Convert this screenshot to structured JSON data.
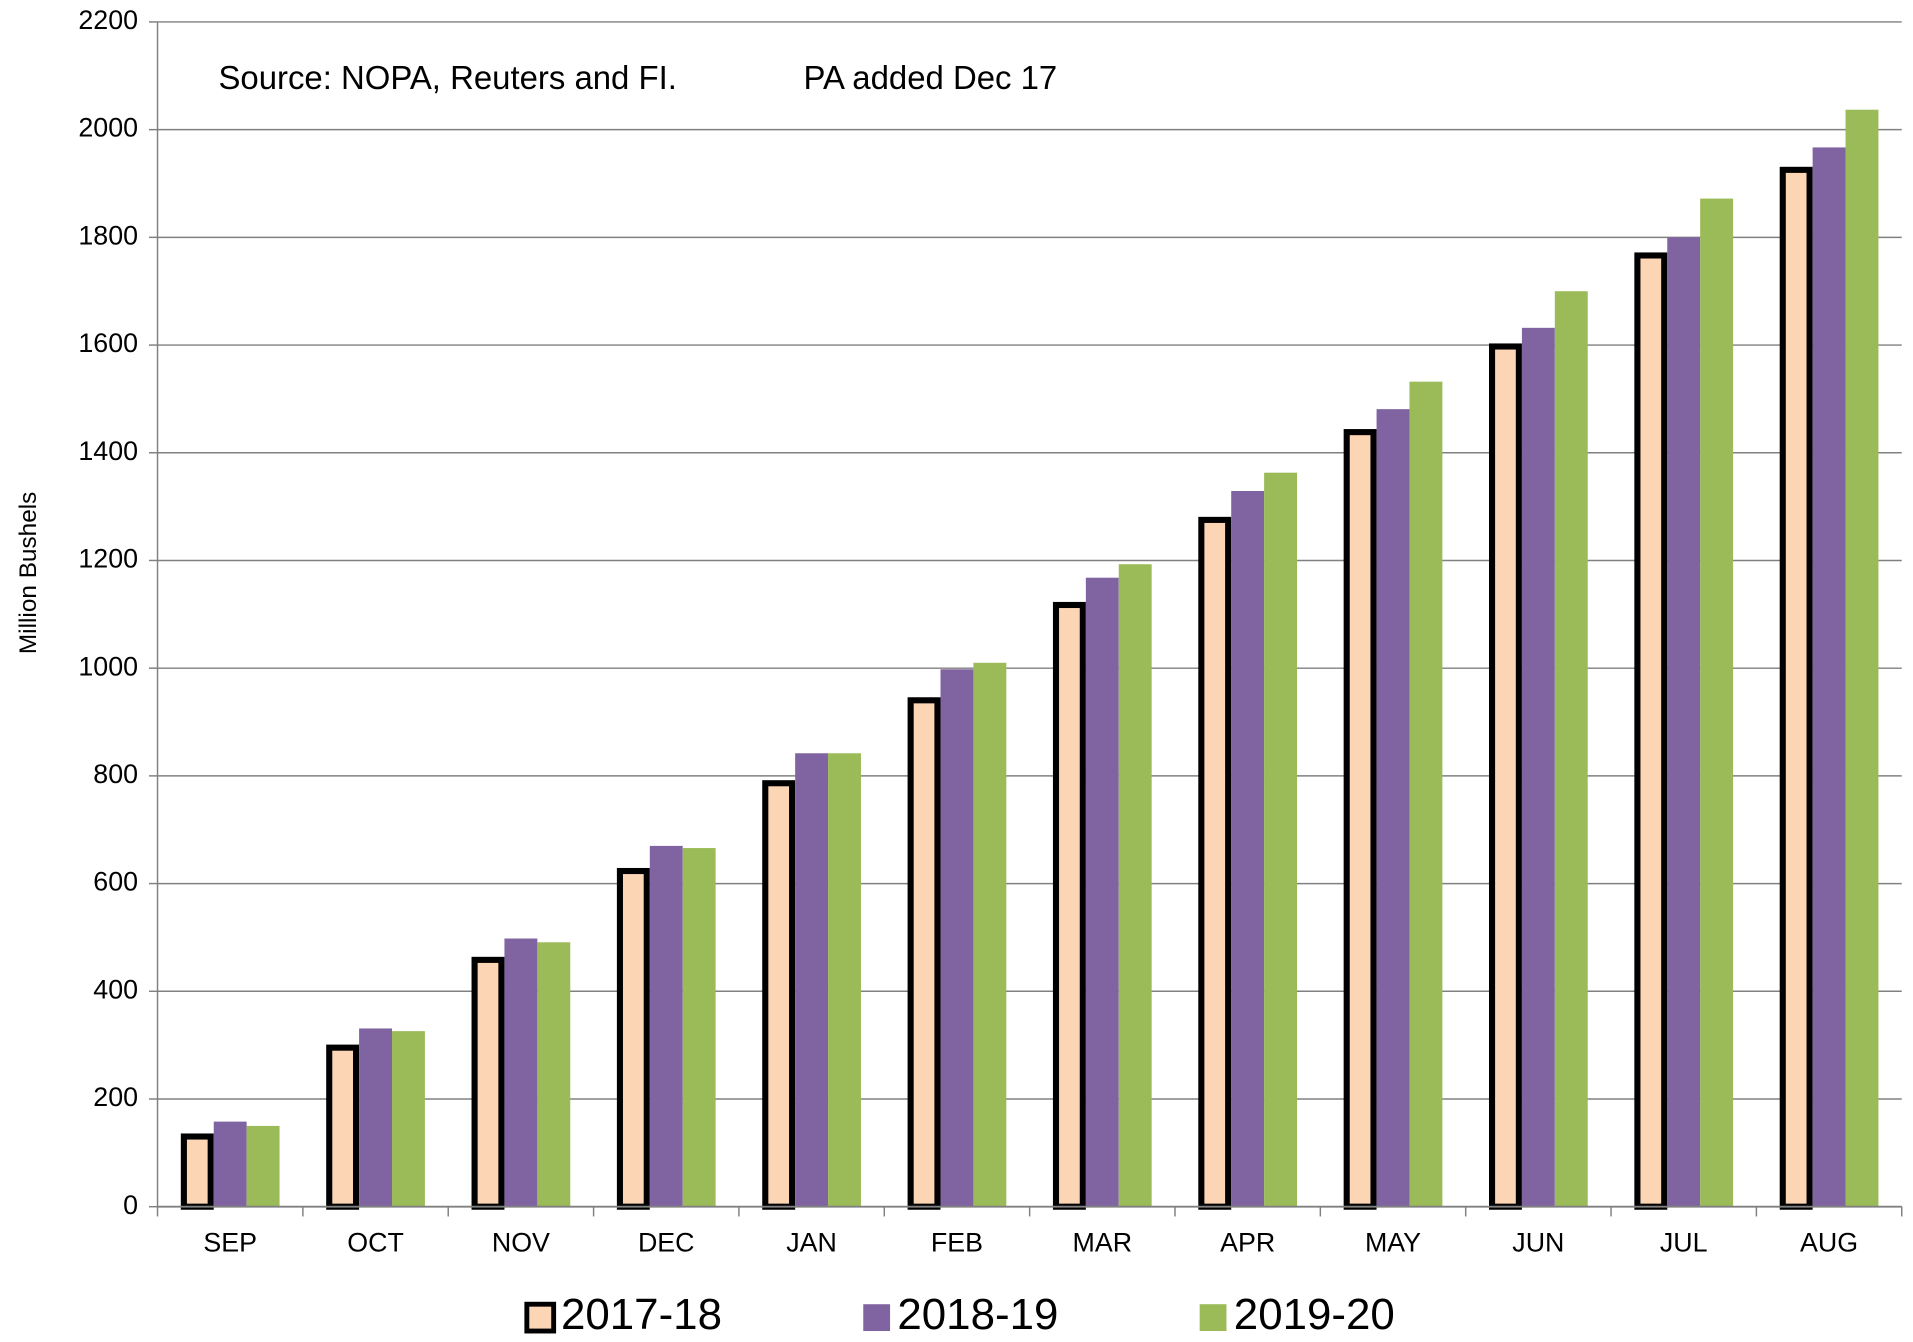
{
  "chart_data": {
    "type": "bar",
    "annotations": [
      "Source: NOPA, Reuters and FI.",
      "PA added Dec 17"
    ],
    "y_label": "Million Bushels",
    "categories": [
      "SEP",
      "OCT",
      "NOV",
      "DEC",
      "JAN",
      "FEB",
      "MAR",
      "APR",
      "MAY",
      "JUN",
      "JUL",
      "AUG"
    ],
    "series": [
      {
        "name": "2017-18",
        "color": "#FCD5B5",
        "edgecolor": "#000000",
        "values": [
          136,
          301,
          464,
          629,
          792,
          946,
          1123,
          1281,
          1444,
          1603,
          1772,
          1931
        ]
      },
      {
        "name": "2018-19",
        "color": "#8064A2",
        "values": [
          158,
          331,
          498,
          670,
          842,
          998,
          1168,
          1329,
          1481,
          1632,
          1800,
          1967
        ]
      },
      {
        "name": "2019-20",
        "color": "#9BBB59",
        "values": [
          150,
          326,
          491,
          666,
          842,
          1010,
          1193,
          1363,
          1532,
          1700,
          1872,
          2037
        ]
      }
    ],
    "ylim": [
      0,
      2200
    ],
    "yticks": [
      0,
      200,
      400,
      600,
      800,
      1000,
      1200,
      1400,
      1600,
      1800,
      2000,
      2200
    ],
    "grid": true
  }
}
